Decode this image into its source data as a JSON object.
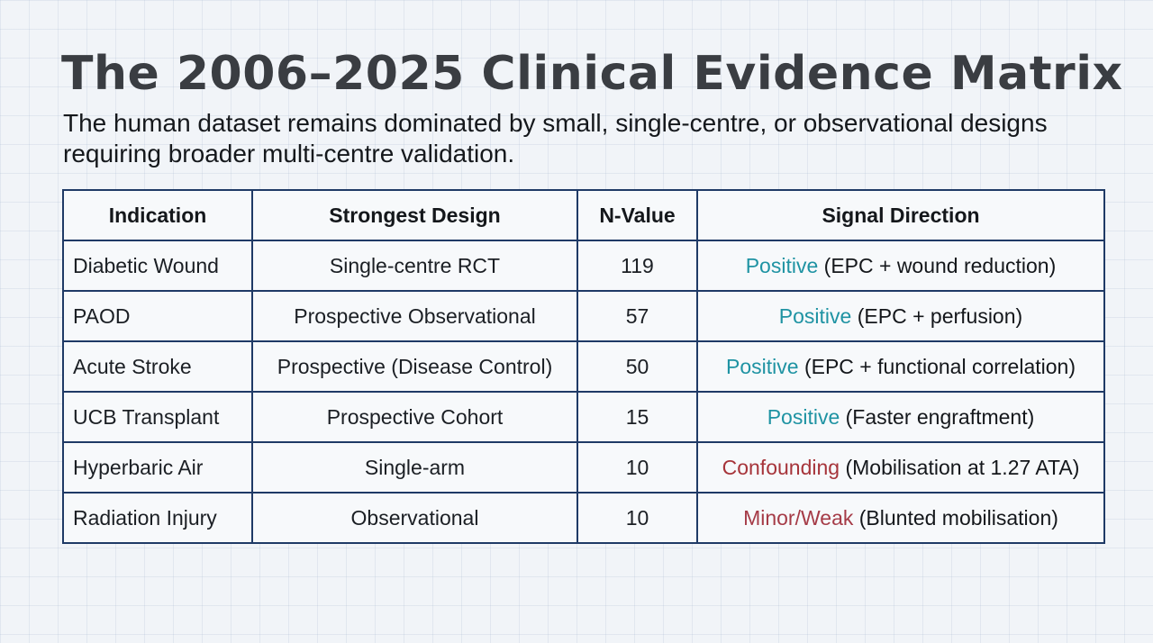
{
  "title": "The 2006–2025 Clinical Evidence Matrix",
  "subtitle": "The human dataset remains dominated by small, single-centre, or observational designs requiring broader multi-centre validation.",
  "table": {
    "headers": [
      "Indication",
      "Strongest Design",
      "N-Value",
      "Signal Direction"
    ],
    "rows": [
      {
        "indication": "Diabetic Wound",
        "design": "Single-centre RCT",
        "n": "119",
        "signal": "Positive",
        "note": "(EPC + wound reduction)"
      },
      {
        "indication": "PAOD",
        "design": "Prospective Observational",
        "n": "57",
        "signal": "Positive",
        "note": "(EPC + perfusion)"
      },
      {
        "indication": "Acute Stroke",
        "design": "Prospective (Disease Control)",
        "n": "50",
        "signal": "Positive",
        "note": "(EPC + functional correlation)"
      },
      {
        "indication": "UCB Transplant",
        "design": "Prospective Cohort",
        "n": "15",
        "signal": "Positive",
        "note": "(Faster engraftment)"
      },
      {
        "indication": "Hyperbaric Air",
        "design": "Single-arm",
        "n": "10",
        "signal": "Confounding",
        "note": "(Mobilisation at 1.27 ATA)"
      },
      {
        "indication": "Radiation Injury",
        "design": "Observational",
        "n": "10",
        "signal": "Minor/Weak",
        "note": "(Blunted mobilisation)"
      }
    ]
  },
  "colors": {
    "positive": "#1f93a3",
    "confounding": "#a6343a",
    "weak": "#a53b47",
    "table_border": "#1f3a66"
  }
}
